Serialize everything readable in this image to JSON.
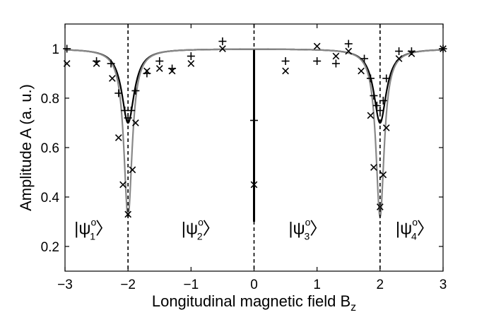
{
  "chart_data": {
    "type": "scatter",
    "title": "",
    "xlabel": "Longitudinal magnetic field B",
    "xlabel_subscript": "z",
    "ylabel": "Amplitude A (a. u.)",
    "xlim": [
      -3,
      3
    ],
    "ylim": [
      0.1,
      1.1
    ],
    "xticks": [
      -3,
      -2,
      -1,
      0,
      1,
      2,
      3
    ],
    "xtick_labels": [
      "−3",
      "−2",
      "−1",
      "0",
      "1",
      "2",
      "3"
    ],
    "yticks": [
      0.2,
      0.4,
      0.6,
      0.8,
      1.0
    ],
    "ytick_labels": [
      "0.2",
      "0.4",
      "0.6",
      "0.8",
      "1"
    ],
    "grid": false,
    "vlines": [
      -2,
      0,
      2
    ],
    "region_labels": [
      {
        "text": "|ψ",
        "sup": "o",
        "sub": "1",
        "close": "〉",
        "x": -2.55
      },
      {
        "text": "|ψ",
        "sup": "o",
        "sub": "2",
        "close": "〉",
        "x": -0.85
      },
      {
        "text": "|ψ",
        "sup": "o",
        "sub": "3",
        "close": "〉",
        "x": 0.85
      },
      {
        "text": "|ψ",
        "sup": "o",
        "sub": "4",
        "close": "〉",
        "x": 2.55
      }
    ],
    "series": [
      {
        "marker": "+",
        "color": "#000000",
        "points": [
          [
            -2.97,
            1.0
          ],
          [
            -2.5,
            0.95
          ],
          [
            -2.27,
            0.94
          ],
          [
            -2.15,
            0.82
          ],
          [
            -2.05,
            0.75
          ],
          [
            -2.0,
            0.72
          ],
          [
            -1.95,
            0.75
          ],
          [
            -1.88,
            0.83
          ],
          [
            -1.7,
            0.9
          ],
          [
            -1.5,
            0.95
          ],
          [
            -1.3,
            0.92
          ],
          [
            -1.0,
            0.97
          ],
          [
            -0.5,
            1.03
          ],
          [
            0.0,
            0.71
          ],
          [
            0.5,
            0.95
          ],
          [
            1.0,
            0.95
          ],
          [
            1.3,
            0.94
          ],
          [
            1.5,
            1.02
          ],
          [
            1.75,
            0.96
          ],
          [
            1.85,
            0.88
          ],
          [
            1.9,
            0.81
          ],
          [
            1.95,
            0.77
          ],
          [
            2.0,
            0.75
          ],
          [
            2.05,
            0.79
          ],
          [
            2.1,
            0.88
          ],
          [
            2.3,
            0.99
          ],
          [
            2.5,
            0.99
          ],
          [
            3.0,
            1.0
          ]
        ]
      },
      {
        "marker": "x",
        "color": "#000000",
        "points": [
          [
            -2.97,
            0.94
          ],
          [
            -2.5,
            0.94
          ],
          [
            -2.25,
            0.88
          ],
          [
            -2.15,
            0.64
          ],
          [
            -2.08,
            0.45
          ],
          [
            -2.0,
            0.33
          ],
          [
            -1.93,
            0.51
          ],
          [
            -1.88,
            0.7
          ],
          [
            -1.7,
            0.91
          ],
          [
            -1.5,
            0.92
          ],
          [
            -1.3,
            0.91
          ],
          [
            -1.0,
            0.94
          ],
          [
            -0.5,
            1.0
          ],
          [
            0.0,
            0.45
          ],
          [
            0.5,
            0.91
          ],
          [
            1.0,
            1.01
          ],
          [
            1.3,
            0.97
          ],
          [
            1.5,
            0.99
          ],
          [
            1.7,
            0.91
          ],
          [
            1.85,
            0.73
          ],
          [
            1.9,
            0.52
          ],
          [
            2.0,
            0.36
          ],
          [
            2.05,
            0.49
          ],
          [
            2.1,
            0.68
          ],
          [
            2.3,
            0.96
          ],
          [
            2.5,
            0.98
          ],
          [
            3.0,
            1.0
          ]
        ]
      }
    ],
    "fit_curves": [
      {
        "color": "#000000",
        "dips": [
          {
            "center": -2.0,
            "depth": 0.3,
            "width": 0.12
          },
          {
            "center": 2.0,
            "depth": 0.3,
            "width": 0.12
          }
        ],
        "center_dip": {
          "center": 0.0,
          "min": 0.3
        }
      },
      {
        "color": "#888888",
        "dips": [
          {
            "center": -2.0,
            "depth": 0.68,
            "width": 0.08
          },
          {
            "center": 2.0,
            "depth": 0.68,
            "width": 0.08
          }
        ]
      }
    ]
  }
}
